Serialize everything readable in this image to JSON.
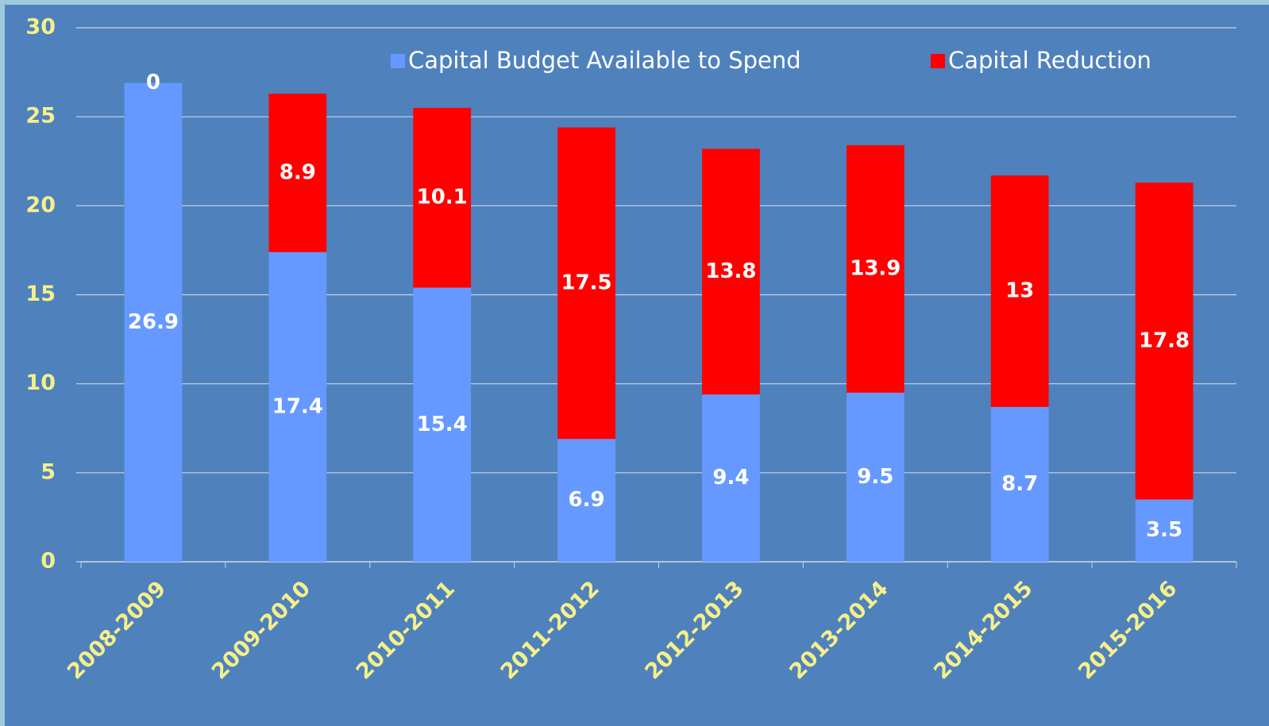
{
  "chart_data": {
    "type": "stacked_bar",
    "categories": [
      "2008-2009",
      "2009-2010",
      "2010-2011",
      "2011-2012",
      "2012-2013",
      "2013-2014",
      "2014-2015",
      "2015-2016"
    ],
    "series": [
      {
        "name": "Capital Budget Available to Spend",
        "color": "#6699ff",
        "values": [
          26.9,
          17.4,
          15.4,
          6.9,
          9.4,
          9.5,
          8.7,
          3.5
        ]
      },
      {
        "name": "Capital Reduction",
        "color": "#ff0000",
        "values": [
          0,
          8.9,
          10.1,
          17.5,
          13.8,
          13.9,
          13,
          17.8
        ]
      }
    ],
    "ylim": [
      0,
      30
    ],
    "yticks": [
      0,
      5,
      10,
      15,
      20,
      25,
      30
    ],
    "grid": true,
    "legend": "top"
  }
}
